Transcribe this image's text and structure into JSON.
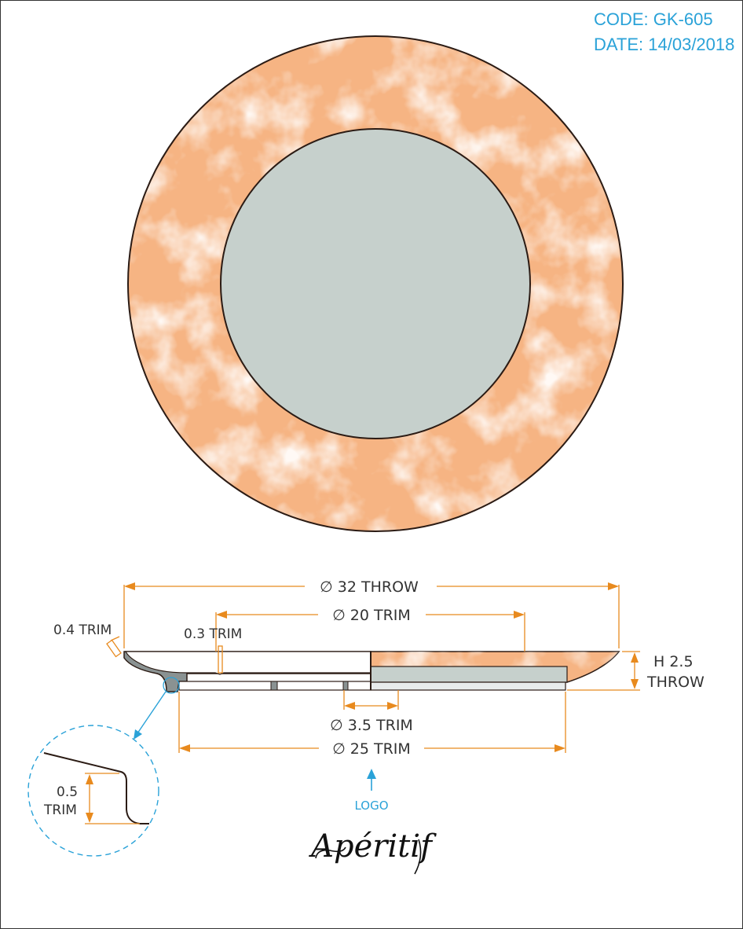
{
  "meta": {
    "code": "CODE: GK-605",
    "date": "DATE: 14/03/2018"
  },
  "colors": {
    "rim": "#f6b483",
    "rim_light": "#fde9da",
    "center": "#c6d0cc",
    "outline": "#2b1b14",
    "dimension": "#e88a1e",
    "annotation": "#2aa2d8",
    "profile": "#8a9292"
  },
  "dimensions": {
    "throw_diameter": "∅ 32 THROW",
    "trim_diameter_20": "∅ 20 TRIM",
    "trim_diameter_3_5": "∅ 3.5 TRIM",
    "trim_diameter_25": "∅ 25 TRIM",
    "rim_trim": "0.4 TRIM",
    "inner_trim": "0.3 TRIM",
    "height_line1": "H 2.5",
    "height_line2": "THROW",
    "detail_line1": "0.5",
    "detail_line2": "TRIM"
  },
  "logo": {
    "label": "LOGO",
    "signature": "Apéritif"
  },
  "icons": {
    "logo_pointer": "arrow-up-icon",
    "detail_pointer": "arrow-leader-icon"
  }
}
